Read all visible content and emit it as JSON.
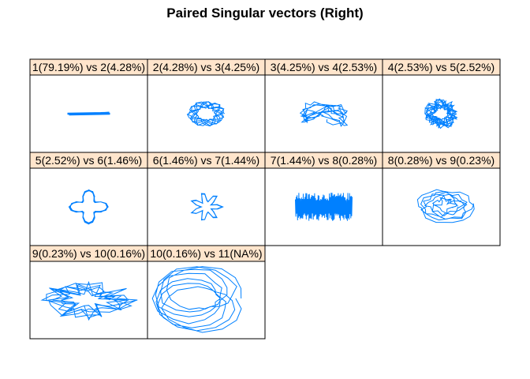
{
  "title": "Paired Singular vectors (Right)",
  "colors": {
    "line": "#0080FF",
    "strip": "#FFE5CC",
    "border": "#000000"
  },
  "chart_data": {
    "type": "line",
    "title": "Paired Singular vectors (Right)",
    "layout": {
      "columns": 4,
      "rows": 3
    },
    "panels": [
      {
        "label": "1(79.19%) vs 2(4.28%)",
        "shape": "flat-line"
      },
      {
        "label": "2(4.28%) vs 3(4.25%)",
        "shape": "ring"
      },
      {
        "label": "3(4.25%) vs 4(2.53%)",
        "shape": "tangled-band"
      },
      {
        "label": "4(2.53%) vs 5(2.52%)",
        "shape": "dense-blob"
      },
      {
        "label": "5(2.52%) vs 6(1.46%)",
        "shape": "four-point-star"
      },
      {
        "label": "6(1.46%) vs 7(1.44%)",
        "shape": "seven-point-star"
      },
      {
        "label": "7(1.44%) vs 8(0.28%)",
        "shape": "vertical-zigzag"
      },
      {
        "label": "8(0.28%) vs 9(0.23%)",
        "shape": "loose-spiral"
      },
      {
        "label": "9(0.23%) vs 10(0.16%)",
        "shape": "wide-tangle"
      },
      {
        "label": "10(0.16%) vs 11(NA%)",
        "shape": "nested-polygons"
      }
    ]
  }
}
